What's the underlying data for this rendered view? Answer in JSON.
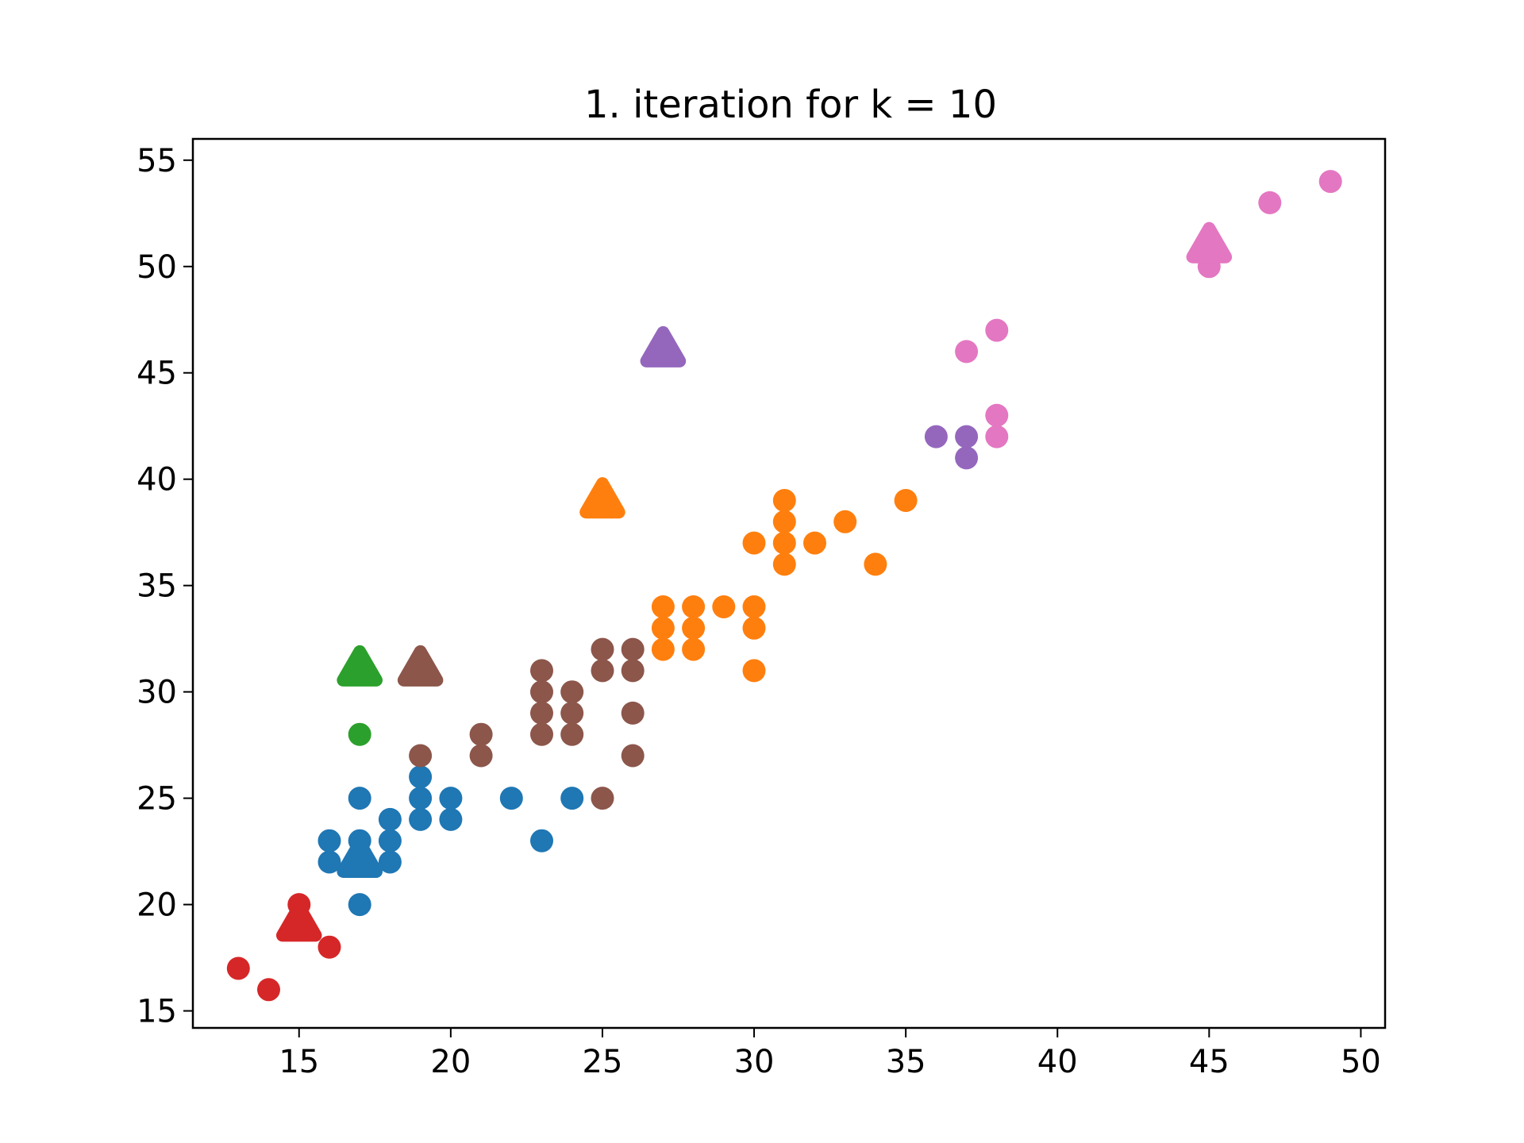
{
  "chart_data": {
    "type": "scatter",
    "title": "1. iteration for k = 10",
    "xlabel": "",
    "ylabel": "",
    "xlim": [
      11.5,
      50.8
    ],
    "ylim": [
      14.2,
      56.0
    ],
    "x_ticks": [
      15,
      20,
      25,
      30,
      35,
      40,
      45,
      50
    ],
    "y_ticks": [
      15,
      20,
      25,
      30,
      35,
      40,
      45,
      50,
      55
    ],
    "grid": false,
    "legend": "none",
    "series": [
      {
        "color": "#1f77b4",
        "points": [
          [
            16,
            22
          ],
          [
            16,
            23
          ],
          [
            17,
            20
          ],
          [
            17,
            22
          ],
          [
            17,
            23
          ],
          [
            17,
            25
          ],
          [
            18,
            22
          ],
          [
            18,
            23
          ],
          [
            18,
            24
          ],
          [
            19,
            24
          ],
          [
            19,
            25
          ],
          [
            19,
            26
          ],
          [
            20,
            24
          ],
          [
            20,
            25
          ],
          [
            22,
            25
          ],
          [
            23,
            23
          ],
          [
            24,
            25
          ]
        ],
        "centroid": [
          17,
          22
        ]
      },
      {
        "color": "#ff7f0e",
        "points": [
          [
            27,
            32
          ],
          [
            27,
            33
          ],
          [
            27,
            34
          ],
          [
            28,
            32
          ],
          [
            28,
            33
          ],
          [
            28,
            34
          ],
          [
            29,
            34
          ],
          [
            30,
            31
          ],
          [
            30,
            33
          ],
          [
            30,
            34
          ],
          [
            30,
            37
          ],
          [
            31,
            36
          ],
          [
            31,
            37
          ],
          [
            31,
            38
          ],
          [
            31,
            39
          ],
          [
            32,
            37
          ],
          [
            33,
            38
          ],
          [
            34,
            36
          ],
          [
            35,
            39
          ]
        ],
        "centroid": [
          25,
          38.9
        ]
      },
      {
        "color": "#2ca02c",
        "points": [
          [
            17,
            28
          ]
        ],
        "centroid": [
          17,
          31
        ]
      },
      {
        "color": "#d62728",
        "points": [
          [
            13,
            17
          ],
          [
            14,
            16
          ],
          [
            15,
            20
          ],
          [
            16,
            18
          ]
        ],
        "centroid": [
          15,
          19
        ]
      },
      {
        "color": "#9467bd",
        "points": [
          [
            36,
            42
          ],
          [
            37,
            41
          ],
          [
            37,
            42
          ]
        ],
        "centroid": [
          27,
          46
        ]
      },
      {
        "color": "#8c564b",
        "points": [
          [
            19,
            27
          ],
          [
            21,
            27
          ],
          [
            21,
            28
          ],
          [
            23,
            28
          ],
          [
            23,
            29
          ],
          [
            23,
            30
          ],
          [
            23,
            31
          ],
          [
            24,
            28
          ],
          [
            24,
            29
          ],
          [
            24,
            30
          ],
          [
            25,
            25
          ],
          [
            25,
            31
          ],
          [
            25,
            32
          ],
          [
            26,
            27
          ],
          [
            26,
            29
          ],
          [
            26,
            31
          ],
          [
            26,
            32
          ]
        ],
        "centroid": [
          19,
          31
        ]
      },
      {
        "color": "#e377c2",
        "points": [
          [
            37,
            46
          ],
          [
            38,
            42
          ],
          [
            38,
            43
          ],
          [
            38,
            47
          ],
          [
            45,
            50
          ],
          [
            47,
            53
          ],
          [
            49,
            54
          ]
        ],
        "centroid": [
          45,
          50.9
        ]
      }
    ]
  }
}
